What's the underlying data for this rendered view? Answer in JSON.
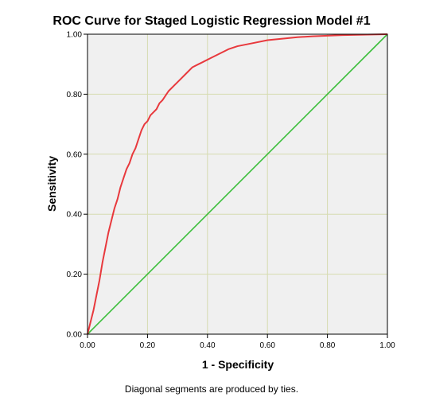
{
  "chart_data": {
    "type": "line",
    "title": "ROC Curve for Staged Logistic Regression Model #1",
    "xlabel": "1 - Specificity",
    "ylabel": "Sensitivity",
    "footnote": "Diagonal segments are produced by ties.",
    "xlim": [
      0,
      1
    ],
    "ylim": [
      0,
      1
    ],
    "x_ticks": [
      "0.00",
      "0.20",
      "0.40",
      "0.60",
      "0.80",
      "1.00"
    ],
    "y_ticks": [
      "0.00",
      "0.20",
      "0.40",
      "0.60",
      "0.80",
      "1.00"
    ],
    "grid": true,
    "colors": {
      "roc_curve": "#e8393d",
      "reference_line": "#3cbf3c",
      "plot_background": "#f0f0f0",
      "gridline": "#d6dbb0"
    },
    "series": [
      {
        "x": [
          0.0,
          0.01,
          0.02,
          0.03,
          0.04,
          0.05,
          0.06,
          0.07,
          0.08,
          0.09,
          0.1,
          0.11,
          0.12,
          0.13,
          0.14,
          0.15,
          0.16,
          0.17,
          0.18,
          0.19,
          0.2,
          0.21,
          0.22,
          0.23,
          0.24,
          0.25,
          0.27,
          0.29,
          0.31,
          0.33,
          0.35,
          0.37,
          0.39,
          0.41,
          0.43,
          0.45,
          0.47,
          0.5,
          0.55,
          0.6,
          0.65,
          0.7,
          0.75,
          0.8,
          0.85,
          0.9,
          0.95,
          1.0
        ],
        "y": [
          0.0,
          0.04,
          0.08,
          0.13,
          0.18,
          0.24,
          0.29,
          0.34,
          0.38,
          0.42,
          0.45,
          0.49,
          0.52,
          0.55,
          0.57,
          0.6,
          0.62,
          0.65,
          0.68,
          0.7,
          0.71,
          0.73,
          0.74,
          0.75,
          0.77,
          0.78,
          0.81,
          0.83,
          0.85,
          0.87,
          0.89,
          0.9,
          0.91,
          0.92,
          0.93,
          0.94,
          0.95,
          0.96,
          0.97,
          0.98,
          0.985,
          0.99,
          0.993,
          0.995,
          0.997,
          0.998,
          0.999,
          1.0
        ]
      },
      {
        "x": [
          0,
          1
        ],
        "y": [
          0,
          1
        ]
      }
    ]
  }
}
